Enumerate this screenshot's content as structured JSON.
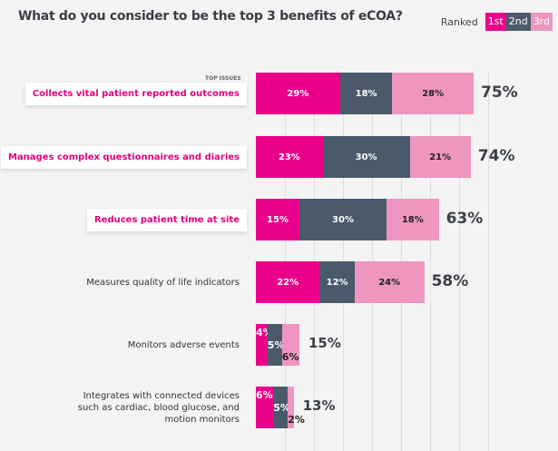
{
  "chart_data": {
    "type": "bar",
    "stacked": true,
    "orientation": "horizontal",
    "title": "What do you consider to be the top 3 benefits of eCOA?",
    "column_header": "TOP ISSUES",
    "legend": {
      "title": "Ranked",
      "entries": [
        "1st",
        "2nd",
        "3rd"
      ],
      "placement": "top-right"
    },
    "colors": {
      "1st": "#ea008a",
      "2nd": "#4b5a6b",
      "3rd": "#ee96c0"
    },
    "categories": [
      "Collects vital patient reported outcomes",
      "Manages complex questionnaires and diaries",
      "Reduces patient time at site",
      "Measures quality of life indicators",
      "Monitors adverse events",
      "Integrates with connected devices such as cardiac, blood glucose, and motion monitors"
    ],
    "highlighted": [
      true,
      true,
      true,
      false,
      false,
      false
    ],
    "series": [
      {
        "name": "1st",
        "values": [
          29,
          23,
          15,
          22,
          4,
          6
        ]
      },
      {
        "name": "2nd",
        "values": [
          18,
          30,
          30,
          12,
          5,
          5
        ]
      },
      {
        "name": "3rd",
        "values": [
          28,
          21,
          18,
          24,
          6,
          2
        ]
      }
    ],
    "totals": [
      75,
      74,
      63,
      58,
      15,
      13
    ],
    "grid": true
  }
}
